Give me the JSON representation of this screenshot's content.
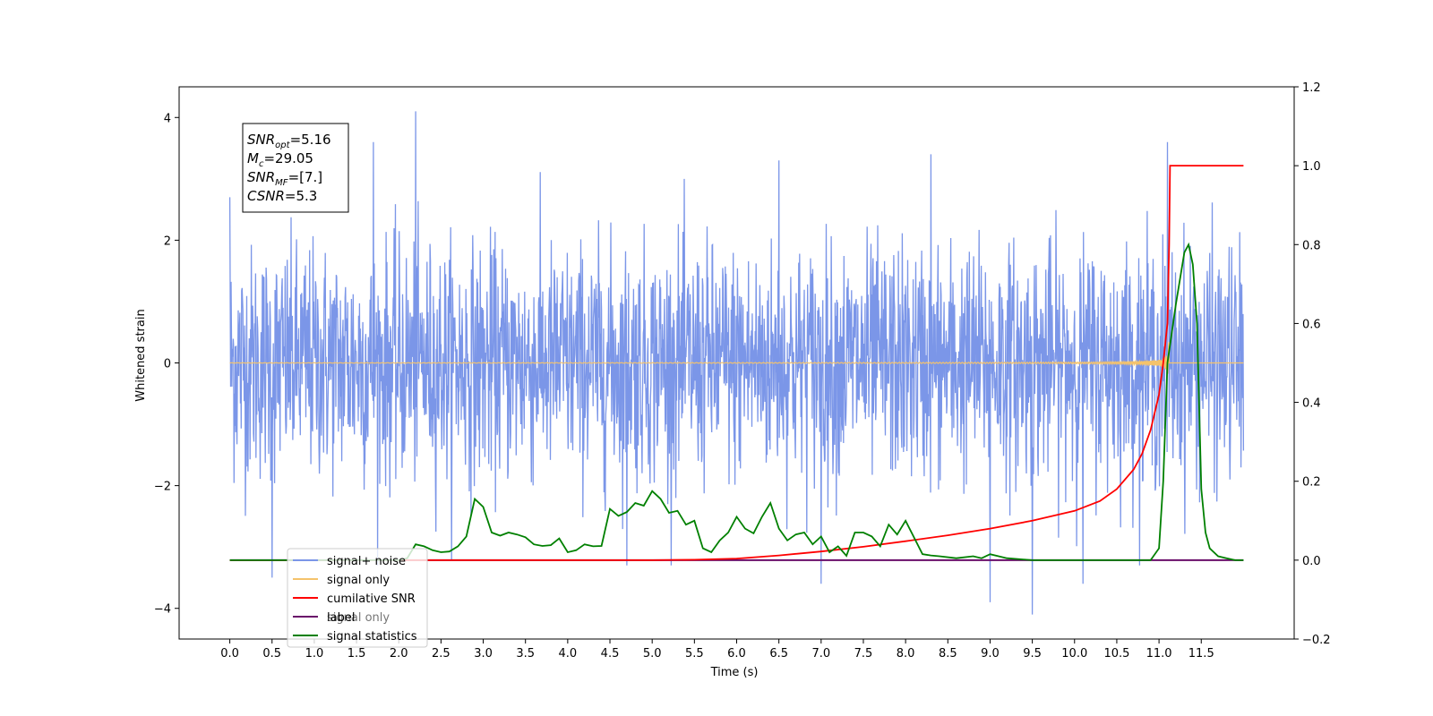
{
  "chart_data": {
    "type": "line",
    "xlabel": "Time (s)",
    "ylabel_left": "Whitened strain",
    "ylabel_right": "",
    "xlim": [
      -0.6,
      12.6
    ],
    "ylim_left": [
      -4.5,
      4.5
    ],
    "ylim_right": [
      -0.2,
      1.2
    ],
    "x_ticks": [
      "0.0",
      "0.5",
      "1.0",
      "1.5",
      "2.0",
      "2.5",
      "3.0",
      "3.5",
      "4.0",
      "4.5",
      "5.0",
      "5.5",
      "6.0",
      "6.5",
      "7.0",
      "7.5",
      "8.0",
      "8.5",
      "9.0",
      "9.5",
      "10.0",
      "10.5",
      "11.0",
      "11.5"
    ],
    "y_ticks_left": [
      "4",
      "2",
      "0",
      "−2",
      "−4"
    ],
    "y_ticks_right": [
      "1.2",
      "1.0",
      "0.8",
      "0.6",
      "0.4",
      "0.2",
      "0.0",
      "−0.2"
    ],
    "grid": false,
    "legend_position": "lower-left",
    "legend": [
      {
        "label": "signal+ noise",
        "color": "#7b96e8"
      },
      {
        "label": "signal only",
        "color": "#f5c36b"
      },
      {
        "label": "cumilative SNR",
        "color": "#ff0000"
      },
      {
        "label": "label",
        "color": "#6a0d6a"
      },
      {
        "label": "signal statistics",
        "color": "#008000"
      }
    ],
    "hidden_legend_label": "signal only",
    "annotation": {
      "lines": [
        {
          "var": "SNR",
          "sub": "opt",
          "val": "=5.16"
        },
        {
          "var": "M",
          "sub": "c",
          "val": "=29.05"
        },
        {
          "var": "SNR",
          "sub": "MF",
          "val": "=[7.]"
        },
        {
          "var": "CSNR",
          "sub": "",
          "val": "=5.3"
        }
      ]
    },
    "series": [
      {
        "name": "signal+ noise",
        "axis": "left",
        "color": "#7b96e8",
        "description_range": [
          -3.5,
          4.1
        ],
        "spikes": [
          [
            0.0,
            2.7
          ],
          [
            0.5,
            -3.5
          ],
          [
            1.7,
            3.6
          ],
          [
            2.2,
            4.1
          ],
          [
            4.7,
            -3.3
          ],
          [
            6.5,
            3.3
          ],
          [
            7.0,
            -3.6
          ],
          [
            8.3,
            3.4
          ],
          [
            9.0,
            -3.9
          ],
          [
            9.5,
            -4.1
          ],
          [
            10.1,
            -3.6
          ],
          [
            11.1,
            3.6
          ]
        ]
      },
      {
        "name": "signal only",
        "axis": "left",
        "color": "#f5c36b",
        "chirp_end": 11.12
      },
      {
        "name": "cumilative SNR",
        "axis": "right",
        "color": "#ff0000",
        "x": [
          0.0,
          5.0,
          5.5,
          6.0,
          6.5,
          7.0,
          7.5,
          8.0,
          8.5,
          9.0,
          9.5,
          10.0,
          10.3,
          10.5,
          10.7,
          10.8,
          10.9,
          11.0,
          11.05,
          11.1,
          11.12,
          11.13,
          12.0
        ],
        "y": [
          0.0,
          0.0,
          0.001,
          0.004,
          0.012,
          0.022,
          0.034,
          0.048,
          0.063,
          0.08,
          0.1,
          0.125,
          0.15,
          0.18,
          0.23,
          0.27,
          0.33,
          0.42,
          0.5,
          0.6,
          0.8,
          1.0,
          1.0
        ]
      },
      {
        "name": "label",
        "axis": "right",
        "color": "#6a0d6a",
        "x": [
          0.0,
          12.0
        ],
        "y": [
          0.0,
          0.0
        ]
      },
      {
        "name": "signal statistics",
        "axis": "right",
        "color": "#008000",
        "x": [
          0.0,
          2.0,
          2.1,
          2.2,
          2.3,
          2.4,
          2.5,
          2.6,
          2.7,
          2.8,
          2.9,
          3.0,
          3.1,
          3.2,
          3.3,
          3.4,
          3.5,
          3.6,
          3.7,
          3.8,
          3.9,
          4.0,
          4.1,
          4.2,
          4.3,
          4.4,
          4.5,
          4.6,
          4.7,
          4.8,
          4.9,
          5.0,
          5.1,
          5.2,
          5.3,
          5.4,
          5.5,
          5.6,
          5.7,
          5.8,
          5.9,
          6.0,
          6.1,
          6.2,
          6.3,
          6.4,
          6.5,
          6.6,
          6.7,
          6.8,
          6.9,
          7.0,
          7.1,
          7.2,
          7.3,
          7.4,
          7.5,
          7.6,
          7.7,
          7.8,
          7.9,
          8.0,
          8.2,
          8.3,
          8.4,
          8.6,
          8.8,
          8.9,
          9.0,
          9.2,
          9.5,
          10.0,
          10.5,
          10.9,
          11.0,
          11.05,
          11.1,
          11.2,
          11.3,
          11.35,
          11.4,
          11.45,
          11.5,
          11.55,
          11.6,
          11.7,
          11.8,
          11.9,
          12.0
        ],
        "y": [
          0.0,
          0.0,
          0.005,
          0.04,
          0.035,
          0.025,
          0.02,
          0.022,
          0.035,
          0.06,
          0.155,
          0.135,
          0.07,
          0.062,
          0.07,
          0.065,
          0.058,
          0.04,
          0.036,
          0.038,
          0.055,
          0.02,
          0.025,
          0.04,
          0.035,
          0.036,
          0.13,
          0.112,
          0.122,
          0.145,
          0.138,
          0.175,
          0.155,
          0.12,
          0.125,
          0.09,
          0.1,
          0.03,
          0.02,
          0.05,
          0.07,
          0.11,
          0.08,
          0.068,
          0.11,
          0.145,
          0.08,
          0.05,
          0.065,
          0.07,
          0.04,
          0.06,
          0.02,
          0.035,
          0.011,
          0.07,
          0.07,
          0.06,
          0.035,
          0.09,
          0.065,
          0.1,
          0.015,
          0.012,
          0.01,
          0.005,
          0.01,
          0.005,
          0.015,
          0.005,
          0.0,
          0.0,
          0.0,
          0.0,
          0.03,
          0.2,
          0.5,
          0.65,
          0.78,
          0.8,
          0.75,
          0.6,
          0.18,
          0.07,
          0.03,
          0.01,
          0.005,
          0.0,
          0.0
        ]
      }
    ]
  }
}
